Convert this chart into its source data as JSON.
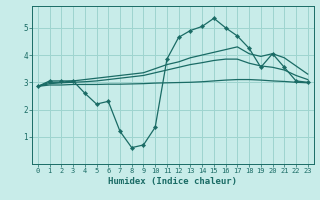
{
  "xlabel": "Humidex (Indice chaleur)",
  "bg_color": "#c8ece9",
  "grid_color": "#9ed4cf",
  "line_color": "#1a6b65",
  "xlim": [
    -0.5,
    23.5
  ],
  "ylim": [
    0.0,
    5.8
  ],
  "yticks": [
    1,
    2,
    3,
    4,
    5
  ],
  "xticks": [
    0,
    1,
    2,
    3,
    4,
    5,
    6,
    7,
    8,
    9,
    10,
    11,
    12,
    13,
    14,
    15,
    16,
    17,
    18,
    19,
    20,
    21,
    22,
    23
  ],
  "curve_x": [
    0,
    1,
    2,
    3,
    4,
    5,
    6,
    7,
    8,
    9,
    10,
    11,
    12,
    13,
    14,
    15,
    16,
    17,
    18,
    19,
    20,
    21,
    22,
    23
  ],
  "curve_main": [
    2.85,
    3.05,
    3.05,
    3.05,
    2.6,
    2.2,
    2.3,
    1.2,
    0.6,
    0.7,
    1.35,
    3.85,
    4.65,
    4.9,
    5.05,
    5.35,
    5.0,
    4.7,
    4.25,
    3.55,
    4.05,
    3.55,
    3.05,
    3.0
  ],
  "curve_upper": [
    2.85,
    3.0,
    3.0,
    3.05,
    3.1,
    3.15,
    3.2,
    3.25,
    3.3,
    3.35,
    3.5,
    3.65,
    3.75,
    3.9,
    4.0,
    4.1,
    4.2,
    4.3,
    4.05,
    3.95,
    4.05,
    3.9,
    3.6,
    3.3
  ],
  "curve_mid_upper": [
    2.85,
    2.95,
    2.98,
    3.0,
    3.02,
    3.05,
    3.1,
    3.15,
    3.2,
    3.25,
    3.35,
    3.45,
    3.55,
    3.65,
    3.72,
    3.8,
    3.85,
    3.85,
    3.7,
    3.6,
    3.55,
    3.45,
    3.25,
    3.1
  ],
  "curve_lower": [
    2.85,
    2.9,
    2.9,
    2.92,
    2.92,
    2.92,
    2.93,
    2.93,
    2.94,
    2.95,
    2.97,
    2.98,
    2.99,
    3.0,
    3.02,
    3.05,
    3.08,
    3.1,
    3.1,
    3.08,
    3.05,
    3.03,
    3.0,
    2.98
  ]
}
